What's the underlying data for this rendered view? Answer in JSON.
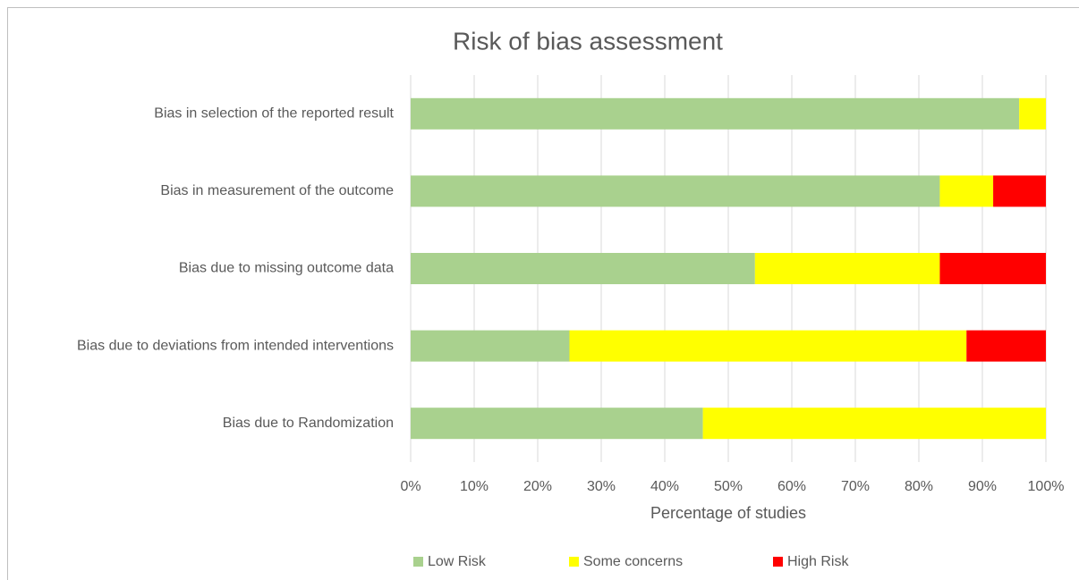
{
  "chart_data": {
    "type": "stacked-barh",
    "title": "Risk of bias assessment",
    "x_label": "Percentage of studies",
    "categories": [
      "Bias in selection of the reported result",
      "Bias in measurement of the outcome",
      "Bias due to missing outcome data",
      "Bias due to deviations from intended interventions",
      "Bias due to Randomization"
    ],
    "series": [
      {
        "name": "Low Risk",
        "color": "#a9d18e",
        "values": [
          95.8,
          83.3,
          54.2,
          25,
          46
        ]
      },
      {
        "name": "Some concerns",
        "color": "#ffff00",
        "values": [
          4.2,
          8.4,
          29.1,
          62.5,
          54
        ]
      },
      {
        "name": "High Risk",
        "color": "#ff0000",
        "values": [
          0,
          8.3,
          16.7,
          12.5,
          0
        ]
      }
    ],
    "xlim": [
      0,
      100
    ],
    "xticks": [
      {
        "value": 0,
        "label": "0%"
      },
      {
        "value": 10,
        "label": "10%"
      },
      {
        "value": 20,
        "label": "20%"
      },
      {
        "value": 30,
        "label": "30%"
      },
      {
        "value": 40,
        "label": "40%"
      },
      {
        "value": 50,
        "label": "50%"
      },
      {
        "value": 60,
        "label": "60%"
      },
      {
        "value": 70,
        "label": "70%"
      },
      {
        "value": 80,
        "label": "80%"
      },
      {
        "value": 90,
        "label": "90%"
      },
      {
        "value": 100,
        "label": "100%"
      }
    ],
    "grid": true,
    "legend": "bottom"
  }
}
